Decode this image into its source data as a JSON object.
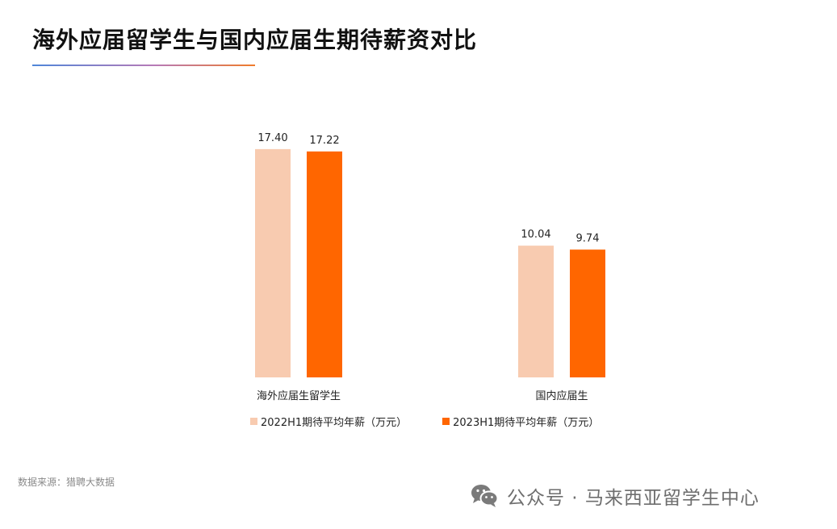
{
  "title": "海外应届留学生与国内应届生期待薪资对比",
  "source": "数据来源：猎聘大数据",
  "watermark": {
    "icon": "wechat-icon",
    "text": "公众号 · 马来西亚留学生中心"
  },
  "colors": {
    "series_2022": "#f8cbb0",
    "series_2023": "#ff6600"
  },
  "chart_data": {
    "type": "bar",
    "title": "海外应届留学生与国内应届生期待薪资对比",
    "xlabel": "",
    "ylabel": "",
    "categories": [
      "海外应届生留学生",
      "国内应届生"
    ],
    "series": [
      {
        "name": "2022H1期待平均年薪（万元）",
        "values": [
          17.4,
          10.04
        ],
        "labels": [
          "17.40",
          "10.04"
        ]
      },
      {
        "name": "2023H1期待平均年薪（万元）",
        "values": [
          17.22,
          9.74
        ],
        "labels": [
          "17.22",
          "9.74"
        ]
      }
    ],
    "ylim": [
      0,
      20
    ],
    "grid": false,
    "legend": "bottom"
  }
}
